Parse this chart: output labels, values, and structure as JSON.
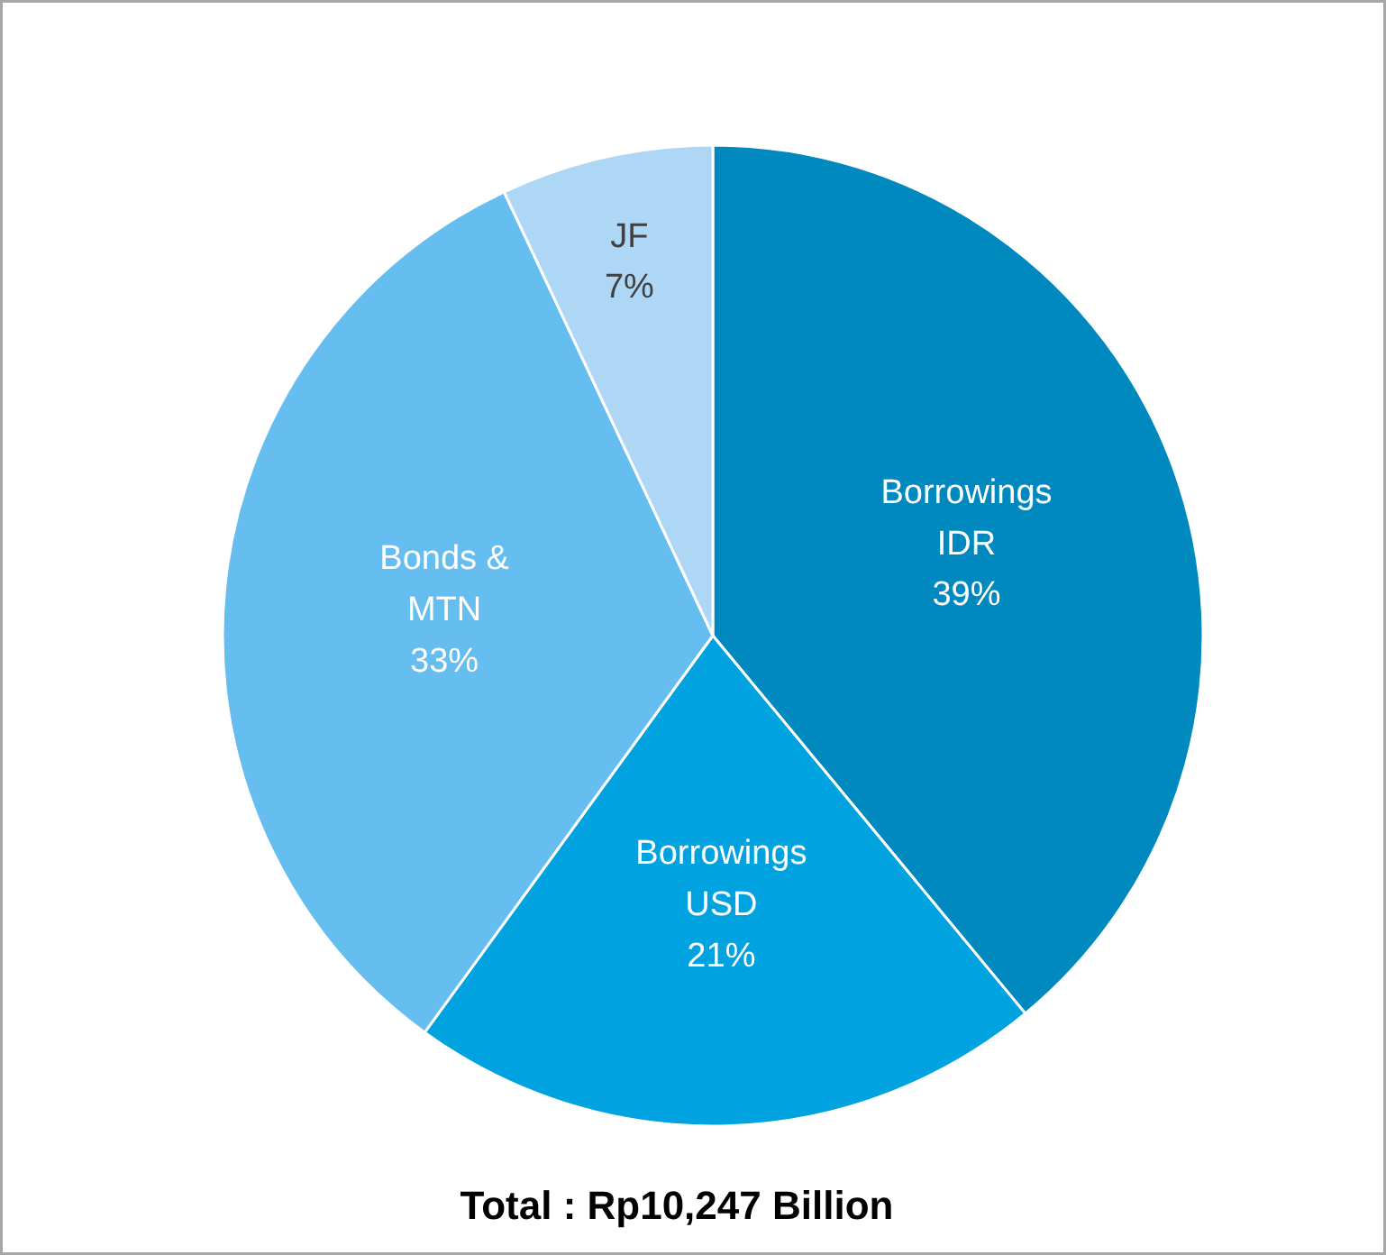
{
  "chart_data": {
    "type": "pie",
    "categories": [
      "Borrowings\nIDR",
      "Borrowings\nUSD",
      "Bonds &\nMTN",
      "JF"
    ],
    "values": [
      39,
      21,
      33,
      7
    ],
    "colors": [
      "#0089bf",
      "#00a3e0",
      "#66bdf0",
      "#aed6f5"
    ],
    "value_labels": [
      "39%",
      "21%",
      "33%",
      "7%"
    ],
    "annotations": [
      "Total : Rp10,247 Billion"
    ]
  }
}
